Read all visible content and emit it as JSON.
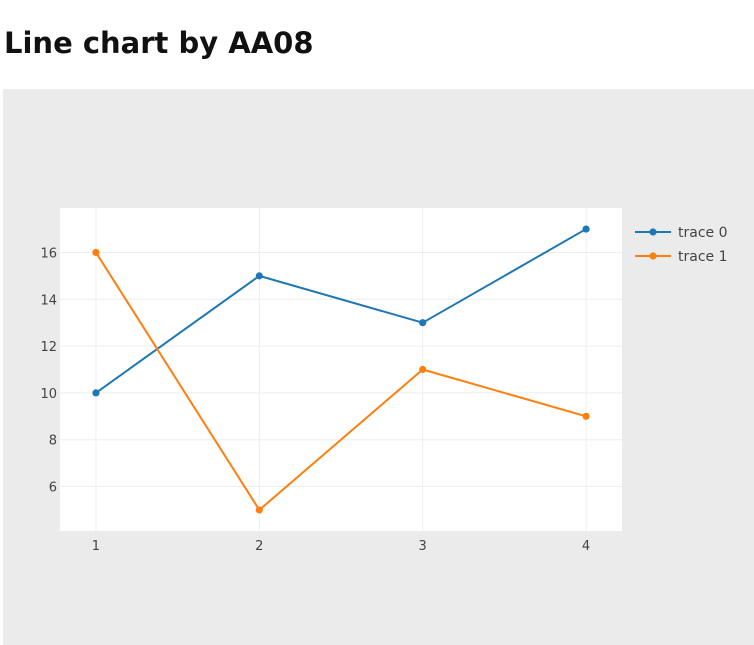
{
  "page": {
    "title": "Line chart by AA08"
  },
  "chart_data": {
    "type": "line",
    "title": "",
    "xlabel": "",
    "ylabel": "",
    "x": [
      1,
      2,
      3,
      4
    ],
    "xlim": [
      0.78,
      4.22
    ],
    "ylim": [
      4.1,
      17.9
    ],
    "xticks": [
      1,
      2,
      3,
      4
    ],
    "yticks": [
      6,
      8,
      10,
      12,
      14,
      16
    ],
    "grid": true,
    "legend_position": "top-right",
    "background_color": "#ebebeb",
    "plot_background_color": "#ffffff",
    "series": [
      {
        "name": "trace 0",
        "color": "#1f77b4",
        "values": [
          10,
          15,
          13,
          17
        ]
      },
      {
        "name": "trace 1",
        "color": "#ff7f0e",
        "values": [
          16,
          5,
          11,
          9
        ]
      }
    ]
  }
}
